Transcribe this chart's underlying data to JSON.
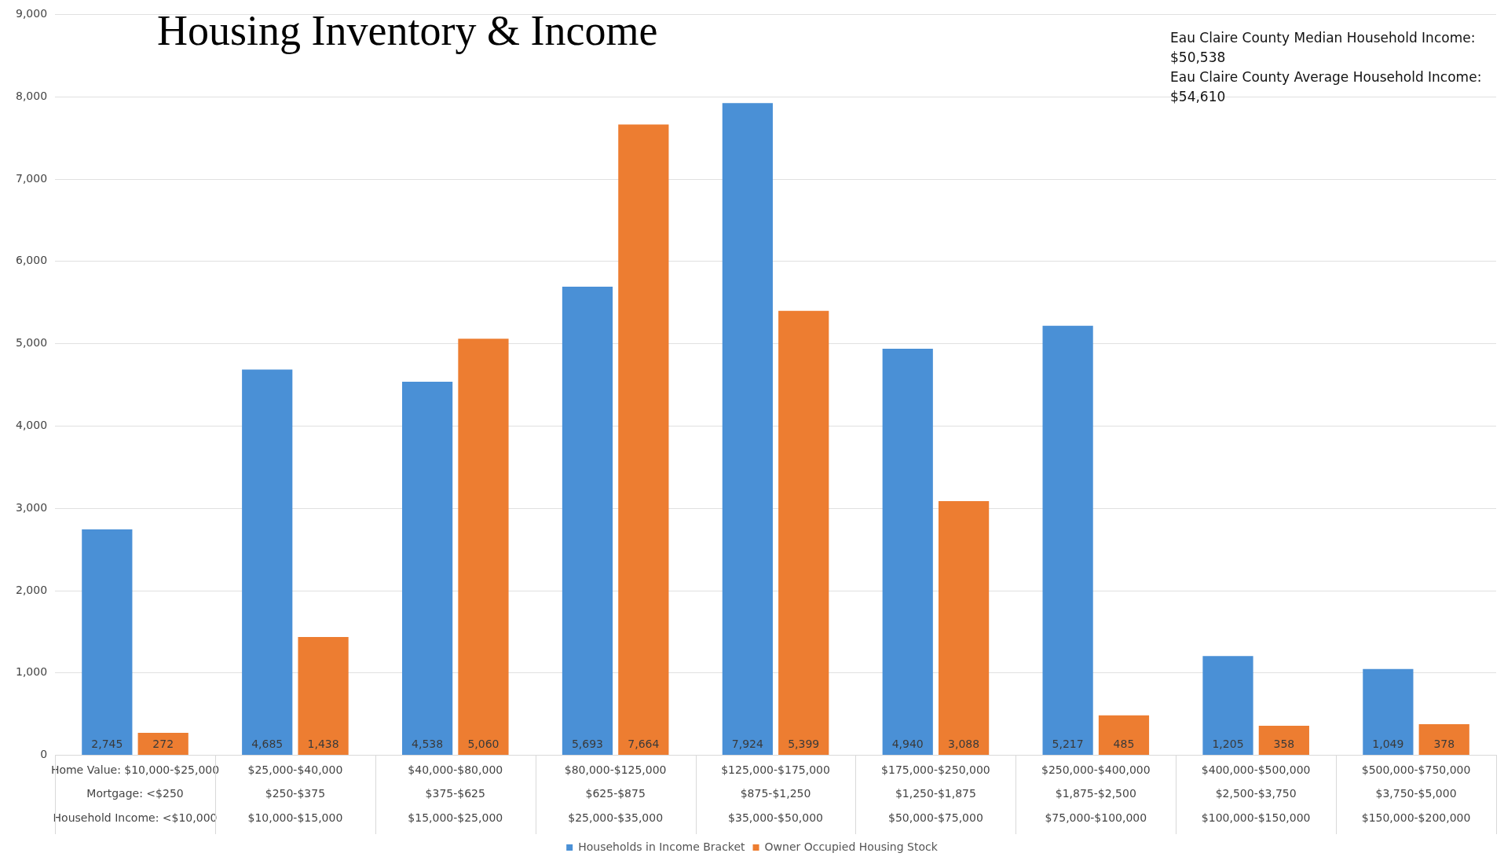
{
  "chart_data": {
    "type": "bar",
    "title": "Housing Inventory & Income",
    "categories": [
      "Home Value: $10,000-$25,000\nMortgage: <$250\nHousehold Income: <$10,000",
      "$25,000-$40,000\n$250-$375\n$10,000-$15,000",
      "$40,000-$80,000\n$375-$625\n$15,000-$25,000",
      "$80,000-$125,000\n$625-$875\n$25,000-$35,000",
      "$125,000-$175,000\n$875-$1,250\n$35,000-$50,000",
      "$175,000-$250,000\n$1,250-$1,875\n$50,000-$75,000",
      "$250,000-$400,000\n$1,875-$2,500\n$75,000-$100,000",
      "$400,000-$500,000\n$2,500-$3,750\n$100,000-$150,000",
      "$500,000-$750,000\n$3,750-$5,000\n$150,000-$200,000"
    ],
    "series": [
      {
        "name": "Households in Income Bracket",
        "color": "#4a90d6",
        "values": [
          2745,
          4685,
          4538,
          5693,
          7924,
          4940,
          5217,
          1205,
          1049
        ],
        "value_labels": [
          "2,745",
          "4,685",
          "4,538",
          "5,693",
          "7,924",
          "4,940",
          "5,217",
          "1,205",
          "1,049"
        ]
      },
      {
        "name": "Owner Occupied Housing Stock",
        "color": "#ed7d31",
        "values": [
          272,
          1438,
          5060,
          7664,
          5399,
          3088,
          485,
          358,
          378
        ],
        "value_labels": [
          "272",
          "1,438",
          "5,060",
          "7,664",
          "5,399",
          "3,088",
          "485",
          "358",
          "378"
        ]
      }
    ],
    "ylim": [
      0,
      9000
    ],
    "yticks": [
      {
        "value": 0,
        "label": "0"
      },
      {
        "value": 1000,
        "label": "1,000"
      },
      {
        "value": 2000,
        "label": "2,000"
      },
      {
        "value": 3000,
        "label": "3,000"
      },
      {
        "value": 4000,
        "label": "4,000"
      },
      {
        "value": 5000,
        "label": "5,000"
      },
      {
        "value": 6000,
        "label": "6,000"
      },
      {
        "value": 7000,
        "label": "7,000"
      },
      {
        "value": 8000,
        "label": "8,000"
      },
      {
        "value": 9000,
        "label": "9,000"
      }
    ],
    "grid": "y",
    "legend": "bottom",
    "annotations": [
      "Eau Claire County Median Household Income:\n$50,538\nEau Claire County Average Household Income:\n$54,610"
    ]
  }
}
